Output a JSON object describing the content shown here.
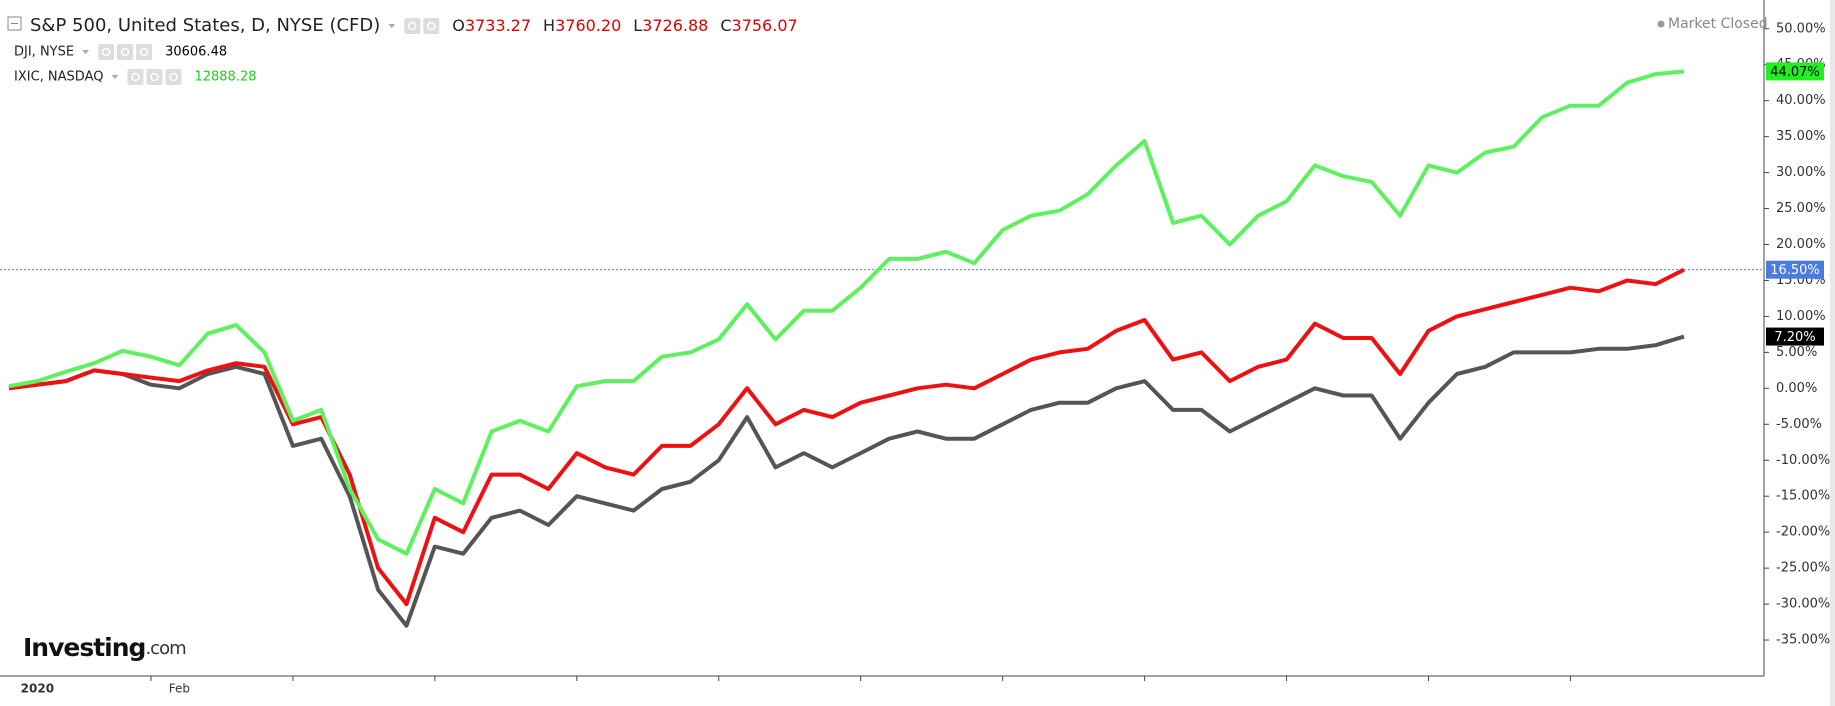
{
  "chart_data": {
    "type": "line",
    "categories": [
      null,
      "2020",
      null,
      null,
      null,
      null,
      "Feb",
      null,
      null,
      null,
      null,
      null,
      null,
      null,
      null,
      null,
      null,
      null,
      null,
      null,
      null,
      null,
      null,
      null,
      null,
      null,
      null,
      null,
      null,
      null,
      null,
      null,
      null,
      null,
      null,
      null,
      null,
      null,
      null,
      null,
      null,
      null,
      null,
      null,
      null,
      null,
      null,
      null,
      null,
      null,
      null,
      null,
      null,
      null,
      null,
      null,
      null,
      null,
      null,
      null
    ],
    "series": [
      {
        "name": "S&P 500, United States, D, NYSE (CFD)",
        "color": "#ee1111",
        "label_background": "#4a7be0",
        "label_color": "#ffffff",
        "ohlc": [
          [
            "O",
            "3733.27"
          ],
          [
            "H",
            "3760.20"
          ],
          [
            "L",
            "3726.88"
          ],
          [
            "C",
            "3756.07"
          ]
        ],
        "values": [
          0,
          0.5,
          1,
          2.5,
          2,
          1.5,
          1,
          2.5,
          3.5,
          3,
          -5,
          -4,
          -12,
          -25,
          -30,
          -18,
          -20,
          -12,
          -12,
          -14,
          -9,
          -11,
          -12,
          -8,
          -8,
          -5,
          0,
          -5,
          -3,
          -4,
          -2,
          -1,
          0,
          0.5,
          0,
          2,
          4,
          5,
          5.5,
          8,
          9.5,
          4,
          5,
          1,
          3,
          4,
          9,
          7,
          7,
          2,
          8,
          10,
          11,
          12,
          13,
          14,
          13.5,
          15,
          14.5,
          16.5
        ],
        "value_labels": [
          null,
          null,
          null,
          null,
          null,
          null,
          null,
          null,
          null,
          null,
          null,
          null,
          null,
          null,
          null,
          null,
          null,
          null,
          null,
          null,
          null,
          null,
          null,
          null,
          null,
          null,
          null,
          null,
          null,
          null,
          null,
          null,
          null,
          null,
          null,
          null,
          null,
          null,
          null,
          null,
          null,
          null,
          null,
          null,
          null,
          null,
          null,
          null,
          null,
          null,
          null,
          null,
          null,
          null,
          null,
          null,
          null,
          null,
          null,
          "16.50%"
        ]
      },
      {
        "name": "DJI, NYSE",
        "color": "#555555",
        "label_background": "#000000",
        "label_color": "#ffffff",
        "quote": "30606.48",
        "quote_color": "#000000",
        "values": [
          0,
          0.5,
          1,
          2.5,
          2,
          0.5,
          0,
          2,
          3,
          2,
          -8,
          -7,
          -15,
          -28,
          -33,
          -22,
          -23,
          -18,
          -17,
          -19,
          -15,
          -16,
          -17,
          -14,
          -13,
          -10,
          -4,
          -11,
          -9,
          -11,
          -9,
          -7,
          -6,
          -7,
          -7,
          -5,
          -3,
          -2,
          -2,
          0,
          1,
          -3,
          -3,
          -6,
          -4,
          -2,
          0,
          -1,
          -1,
          -7,
          -2,
          2,
          3,
          5,
          5,
          5,
          5.5,
          5.5,
          6,
          7.2
        ],
        "value_labels": [
          null,
          null,
          null,
          null,
          null,
          null,
          null,
          null,
          null,
          null,
          null,
          null,
          null,
          null,
          null,
          null,
          null,
          null,
          null,
          null,
          null,
          null,
          null,
          null,
          null,
          null,
          null,
          null,
          null,
          null,
          null,
          null,
          null,
          null,
          null,
          null,
          null,
          null,
          null,
          null,
          null,
          null,
          null,
          null,
          null,
          null,
          null,
          null,
          null,
          null,
          null,
          null,
          null,
          null,
          null,
          null,
          null,
          null,
          null,
          "7.20%"
        ]
      },
      {
        "name": "IXIC, NASDAQ",
        "color": "#5ef05e",
        "label_background": "#22ee22",
        "label_color": "#000000",
        "quote": "12888.28",
        "quote_color": "#22cc22",
        "values": [
          0.3,
          1,
          2.3,
          3.5,
          5.2,
          4.4,
          3.2,
          7.6,
          8.8,
          5,
          -4.5,
          -3,
          -14,
          -21,
          -23,
          -14,
          -16,
          -6,
          -4.5,
          -6,
          0.3,
          1,
          1,
          4.4,
          5,
          6.8,
          11.7,
          6.8,
          10.8,
          10.8,
          14,
          18,
          18,
          19,
          17.4,
          22,
          24,
          24.7,
          27,
          31,
          34.4,
          23,
          24,
          20,
          24,
          26,
          31,
          29.5,
          28.7,
          24,
          31,
          30,
          32.8,
          33.6,
          37.7,
          39.3,
          39.3,
          42.5,
          43.7,
          44.07
        ],
        "value_labels": [
          null,
          null,
          null,
          null,
          null,
          null,
          null,
          null,
          null,
          null,
          null,
          null,
          null,
          null,
          null,
          null,
          null,
          null,
          null,
          null,
          null,
          null,
          null,
          null,
          null,
          null,
          null,
          null,
          null,
          null,
          null,
          null,
          null,
          null,
          null,
          null,
          null,
          null,
          null,
          null,
          null,
          null,
          null,
          null,
          null,
          null,
          null,
          null,
          null,
          null,
          null,
          null,
          null,
          null,
          null,
          null,
          null,
          null,
          null,
          "44.07%"
        ]
      }
    ],
    "ylim": [
      -40,
      54
    ],
    "yticks": [
      {
        "value": 50,
        "label": "50.00%"
      },
      {
        "value": 45,
        "label": "45.00%"
      },
      {
        "value": 40,
        "label": "40.00%"
      },
      {
        "value": 35,
        "label": "35.00%"
      },
      {
        "value": 30,
        "label": "30.00%"
      },
      {
        "value": 25,
        "label": "25.00%"
      },
      {
        "value": 20,
        "label": "20.00%"
      },
      {
        "value": 15,
        "label": "15.00%"
      },
      {
        "value": 10,
        "label": "10.00%"
      },
      {
        "value": 5,
        "label": "5.00%"
      },
      {
        "value": 0,
        "label": "0.00%"
      },
      {
        "value": -5,
        "label": "-5.00%"
      },
      {
        "value": -10,
        "label": "-10.00%"
      },
      {
        "value": -15,
        "label": "-15.00%"
      },
      {
        "value": -20,
        "label": "-20.00%"
      },
      {
        "value": -25,
        "label": "-25.00%"
      },
      {
        "value": -30,
        "label": "-30.00%"
      },
      {
        "value": -35,
        "label": "-35.00%"
      }
    ],
    "grid": false,
    "status": "Market Closed",
    "logo": {
      "brand": "Investing",
      "suffix": ".com"
    }
  }
}
